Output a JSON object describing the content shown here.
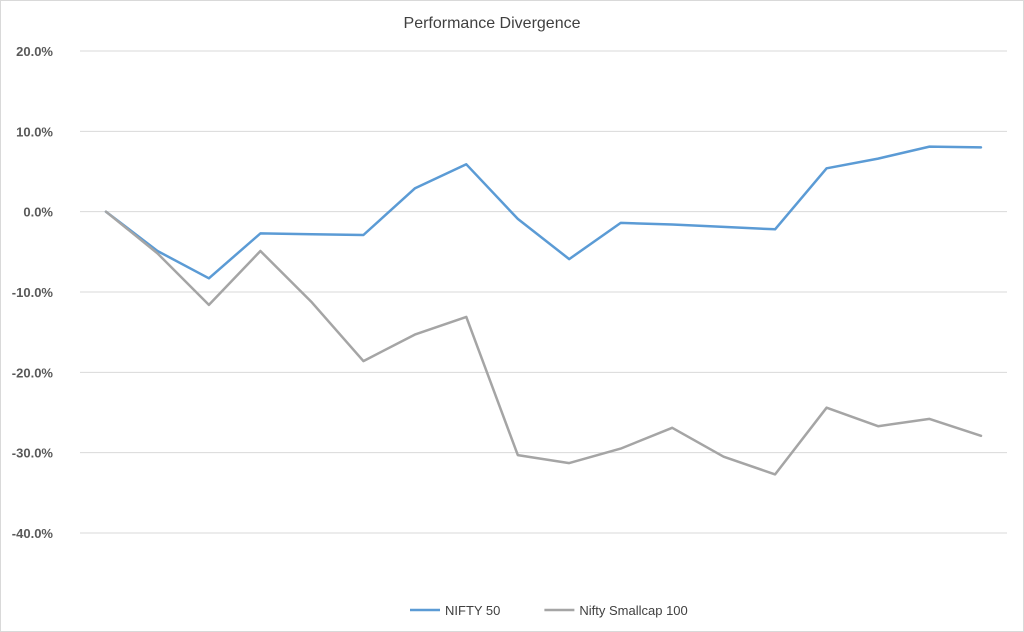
{
  "chart_data": {
    "type": "line",
    "title": "Performance Divergence",
    "xlabel": "",
    "ylabel": "",
    "ylim": [
      -40,
      20
    ],
    "yticks": [
      20,
      10,
      0,
      -10,
      -20,
      -30,
      -40
    ],
    "ytick_labels": [
      "20.0%",
      "10.0%",
      "0.0%",
      "-10.0%",
      "-20.0%",
      "-30.0%",
      "-40.0%"
    ],
    "x": [
      0,
      1,
      2,
      3,
      4,
      5,
      6,
      7,
      8,
      9,
      10,
      11,
      12,
      13,
      14,
      15,
      16,
      17
    ],
    "grid": "horizontal",
    "legend_position": "bottom",
    "series": [
      {
        "name": "NIFTY 50",
        "color": "#5b9bd5",
        "values": [
          0,
          -4.9,
          -8.3,
          -2.7,
          -2.8,
          -2.9,
          2.9,
          5.9,
          -0.9,
          -5.9,
          -1.4,
          -1.6,
          -1.9,
          -2.2,
          5.4,
          6.6,
          8.1,
          8.0
        ]
      },
      {
        "name": "Nifty Smallcap 100",
        "color": "#a5a5a5",
        "values": [
          0,
          -5.2,
          -11.6,
          -4.9,
          -11.3,
          -18.6,
          -15.3,
          -13.1,
          -30.3,
          -31.3,
          -29.5,
          -26.9,
          -30.5,
          -32.7,
          -24.4,
          -26.7,
          -25.8,
          -27.9
        ]
      }
    ]
  }
}
